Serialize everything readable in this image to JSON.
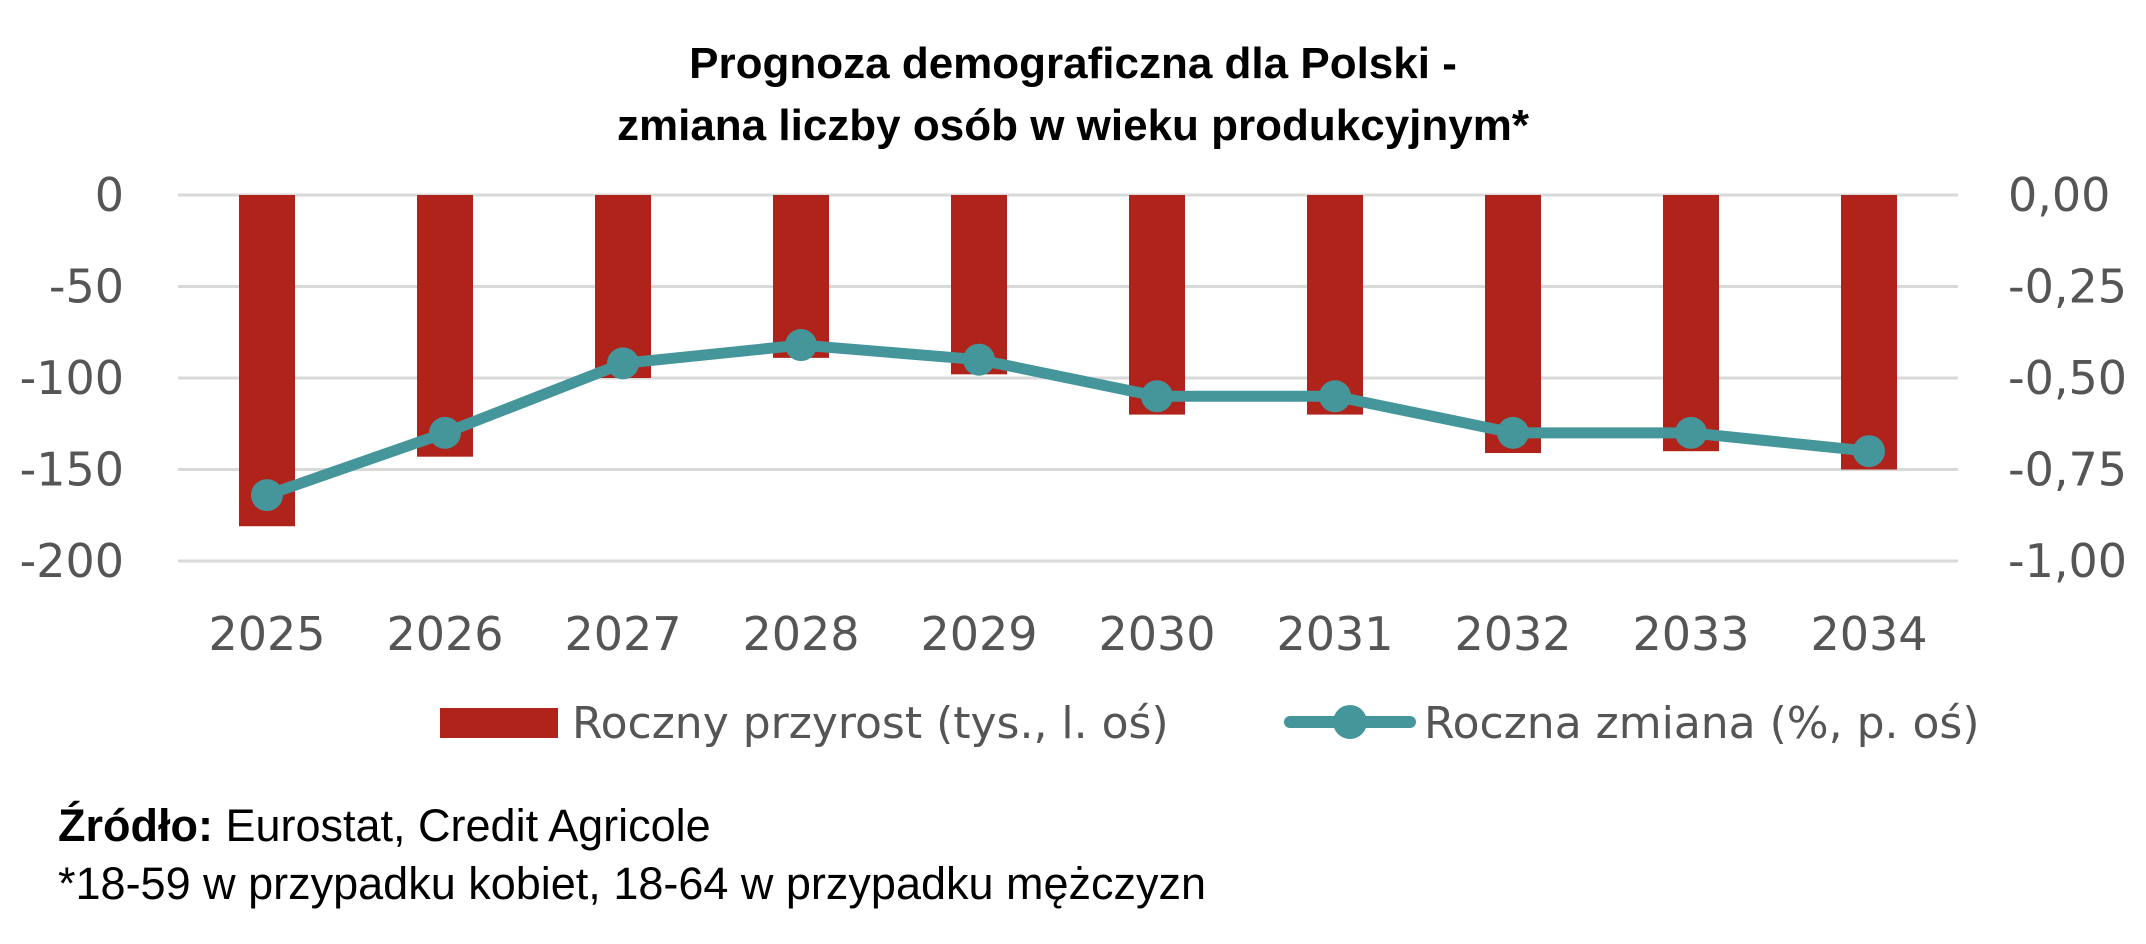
{
  "chart_data": {
    "type": "bar+line",
    "title_line1": "Prognoza demograficzna dla Polski -",
    "title_line2": "zmiana liczby osób w wieku produkcyjnym*",
    "categories": [
      "2025",
      "2026",
      "2027",
      "2028",
      "2029",
      "2030",
      "2031",
      "2032",
      "2033",
      "2034"
    ],
    "left_axis": {
      "ylim": [
        -200,
        0
      ],
      "ticks": [
        0,
        -50,
        -100,
        -150,
        -200
      ],
      "tick_labels": [
        "0",
        "-50",
        "-100",
        "-150",
        "-200"
      ]
    },
    "right_axis": {
      "ylim": [
        -1.0,
        0.0
      ],
      "ticks": [
        0.0,
        -0.25,
        -0.5,
        -0.75,
        -1.0
      ],
      "tick_labels": [
        "0,00",
        "-0,25",
        "-0,50",
        "-0,75",
        "-1,00"
      ]
    },
    "series": [
      {
        "name": "Roczny przyrost (tys., l. oś)",
        "type": "bar",
        "axis": "left",
        "color": "#B0231B",
        "values": [
          -181,
          -143,
          -100,
          -89,
          -98,
          -120,
          -120,
          -141,
          -140,
          -150
        ]
      },
      {
        "name": "Roczna zmiana (%, p. oś)",
        "type": "line",
        "axis": "right",
        "color": "#45969A",
        "values": [
          -0.82,
          -0.65,
          -0.46,
          -0.41,
          -0.45,
          -0.55,
          -0.55,
          -0.65,
          -0.65,
          -0.7
        ]
      }
    ],
    "grid": true,
    "legend_position": "bottom"
  },
  "footer": {
    "source_label": "Źródło:",
    "source_text": " Eurostat, Credit Agricole",
    "note": "*18-59 w przypadku kobiet, 18-64 w przypadku mężczyzn"
  }
}
